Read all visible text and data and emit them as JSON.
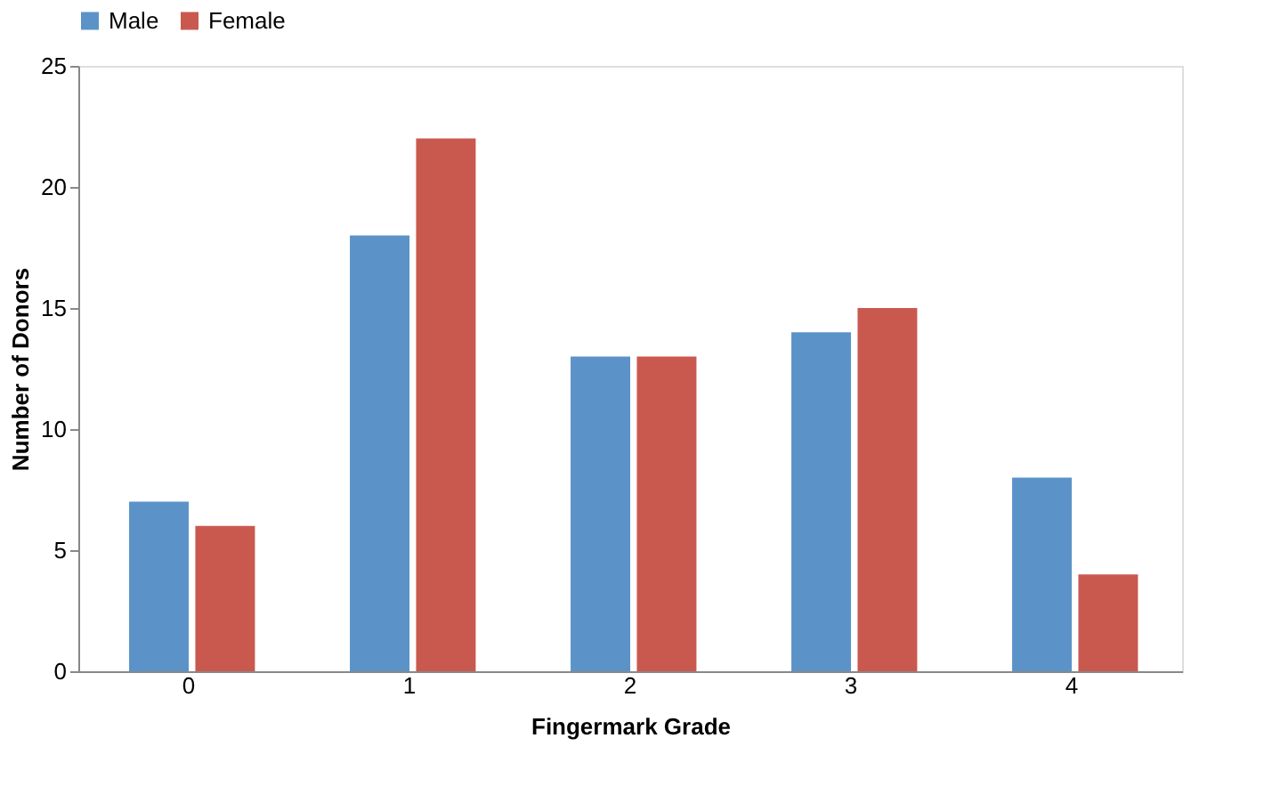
{
  "chart_data": {
    "type": "bar",
    "xlabel": "Fingermark Grade",
    "ylabel": "Number of Donors",
    "categories": [
      "0",
      "1",
      "2",
      "3",
      "4"
    ],
    "series": [
      {
        "name": "Male",
        "color": "#5b93c8",
        "values": [
          7,
          18,
          13,
          14,
          8
        ]
      },
      {
        "name": "Female",
        "color": "#c9594f",
        "values": [
          6,
          22,
          13,
          15,
          4
        ]
      }
    ],
    "ylim": [
      0,
      25
    ],
    "yticks": [
      0,
      5,
      10,
      15,
      20,
      25
    ],
    "grid": false,
    "legend": "top"
  }
}
